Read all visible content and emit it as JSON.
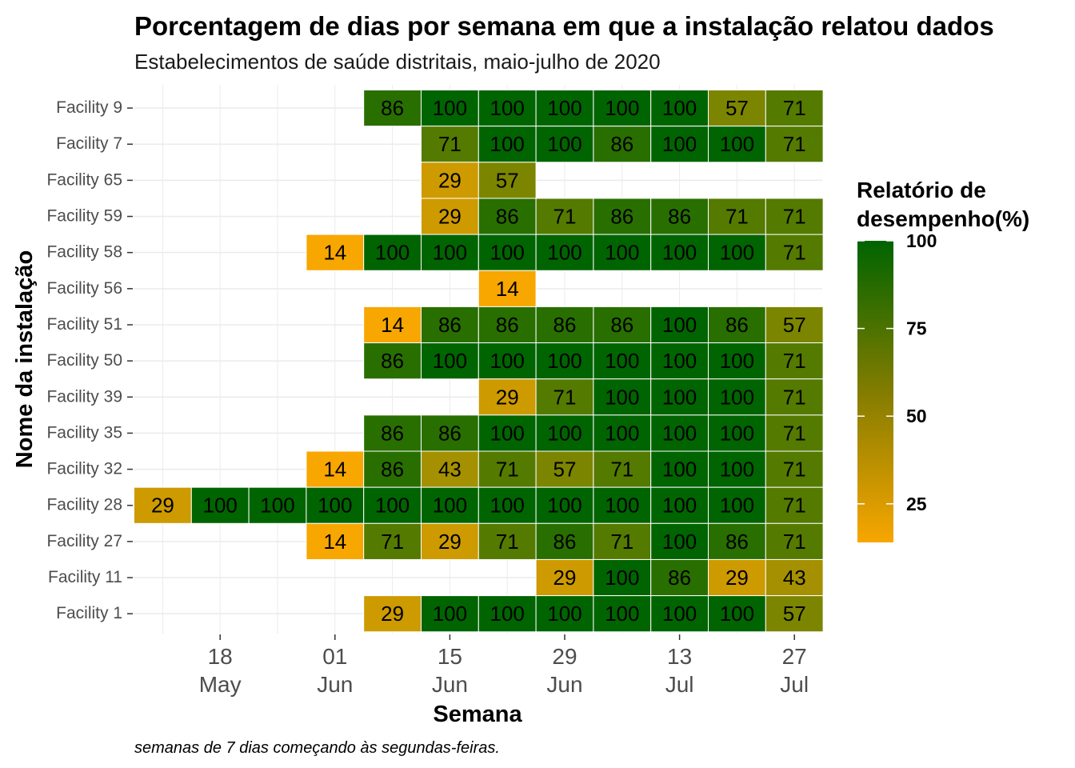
{
  "chart_data": {
    "type": "heatmap",
    "title": "Porcentagem de dias por semana em que a instalação relatou dados",
    "subtitle": "Estabelecimentos de saúde distritais, maio-julho de 2020",
    "xlabel": "Semana",
    "ylabel": "Nome da instalação",
    "caption": "semanas de 7 dias começando às segundas-feiras.",
    "x_tick_labels": [
      {
        "day": "18",
        "month": "May"
      },
      {
        "day": "01",
        "month": "Jun"
      },
      {
        "day": "15",
        "month": "Jun"
      },
      {
        "day": "29",
        "month": "Jun"
      },
      {
        "day": "13",
        "month": "Jul"
      },
      {
        "day": "27",
        "month": "Jul"
      }
    ],
    "weeks": [
      "2020-05-11",
      "2020-05-18",
      "2020-05-25",
      "2020-06-01",
      "2020-06-08",
      "2020-06-15",
      "2020-06-22",
      "2020-06-29",
      "2020-07-06",
      "2020-07-13",
      "2020-07-20",
      "2020-07-27"
    ],
    "facilities": [
      "Facility 9",
      "Facility 7",
      "Facility 65",
      "Facility 59",
      "Facility 58",
      "Facility 56",
      "Facility 51",
      "Facility 50",
      "Facility 39",
      "Facility 35",
      "Facility 32",
      "Facility 28",
      "Facility 27",
      "Facility 11",
      "Facility 1"
    ],
    "values": [
      [
        null,
        null,
        null,
        null,
        86,
        100,
        100,
        100,
        100,
        100,
        57,
        71
      ],
      [
        null,
        null,
        null,
        null,
        null,
        71,
        100,
        100,
        86,
        100,
        100,
        71
      ],
      [
        null,
        null,
        null,
        null,
        null,
        29,
        57,
        null,
        null,
        null,
        null,
        null
      ],
      [
        null,
        null,
        null,
        null,
        null,
        29,
        86,
        71,
        86,
        86,
        71,
        71
      ],
      [
        null,
        null,
        null,
        14,
        100,
        100,
        100,
        100,
        100,
        100,
        100,
        71
      ],
      [
        null,
        null,
        null,
        null,
        null,
        null,
        14,
        null,
        null,
        null,
        null,
        null
      ],
      [
        null,
        null,
        null,
        null,
        14,
        86,
        86,
        86,
        86,
        100,
        86,
        57
      ],
      [
        null,
        null,
        null,
        null,
        86,
        100,
        100,
        100,
        100,
        100,
        100,
        71
      ],
      [
        null,
        null,
        null,
        null,
        null,
        null,
        29,
        71,
        100,
        100,
        100,
        71
      ],
      [
        null,
        null,
        null,
        null,
        86,
        86,
        100,
        100,
        100,
        100,
        100,
        71
      ],
      [
        null,
        null,
        null,
        14,
        86,
        43,
        71,
        57,
        71,
        100,
        100,
        71
      ],
      [
        29,
        100,
        100,
        100,
        100,
        100,
        100,
        100,
        100,
        100,
        100,
        71
      ],
      [
        null,
        null,
        null,
        14,
        71,
        29,
        71,
        86,
        71,
        100,
        86,
        71
      ],
      [
        null,
        null,
        null,
        null,
        null,
        null,
        null,
        29,
        100,
        86,
        29,
        43
      ],
      [
        null,
        null,
        null,
        null,
        29,
        100,
        100,
        100,
        100,
        100,
        100,
        57
      ]
    ],
    "legend": {
      "title_line1": "Relatório de",
      "title_line2": "desempenho(%)",
      "ticks": [
        "100",
        "75",
        "50",
        "25"
      ],
      "tick_values": [
        100,
        75,
        50,
        25
      ],
      "range": [
        14,
        100
      ],
      "color_low": "#f8a600",
      "color_high": "#006400",
      "placement": "right"
    },
    "grid": true
  }
}
